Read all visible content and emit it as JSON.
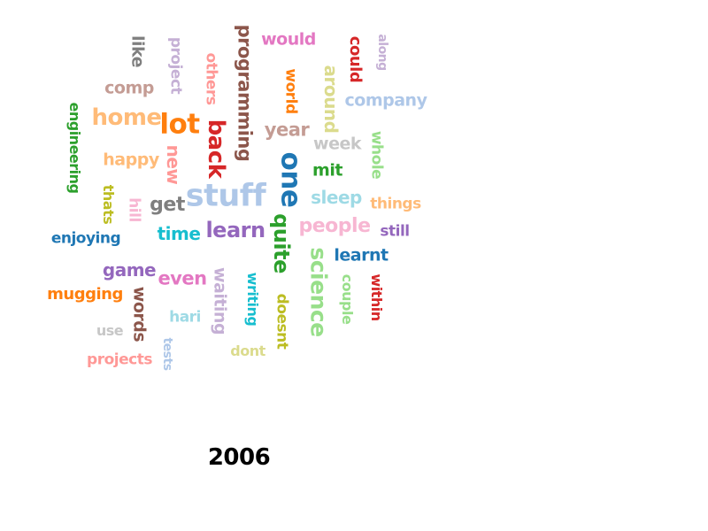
{
  "title": "2006",
  "words": [
    {
      "text": "like",
      "color": "#7f7f7f",
      "vertical": true
    },
    {
      "text": "project",
      "color": "#c5b0d5",
      "vertical": true
    },
    {
      "text": "others",
      "color": "#ff9896",
      "vertical": true
    },
    {
      "text": "programming",
      "color": "#8c564b",
      "vertical": true
    },
    {
      "text": "would",
      "color": "#e377c2",
      "vertical": false
    },
    {
      "text": "could",
      "color": "#d62728",
      "vertical": true
    },
    {
      "text": "along",
      "color": "#c5b0d5",
      "vertical": true
    },
    {
      "text": "comp",
      "color": "#c49c94",
      "vertical": false
    },
    {
      "text": "world",
      "color": "#ff7f0e",
      "vertical": true
    },
    {
      "text": "around",
      "color": "#dbdb8d",
      "vertical": true
    },
    {
      "text": "company",
      "color": "#aec7e8",
      "vertical": false
    },
    {
      "text": "home",
      "color": "#ffbb78",
      "vertical": false
    },
    {
      "text": "lot",
      "color": "#ff7f0e",
      "vertical": false
    },
    {
      "text": "engineering",
      "color": "#2ca02c",
      "vertical": true
    },
    {
      "text": "back",
      "color": "#d62728",
      "vertical": true
    },
    {
      "text": "year",
      "color": "#c49c94",
      "vertical": false
    },
    {
      "text": "week",
      "color": "#c7c7c7",
      "vertical": false
    },
    {
      "text": "whole",
      "color": "#98df8a",
      "vertical": true
    },
    {
      "text": "happy",
      "color": "#ffbb78",
      "vertical": false
    },
    {
      "text": "new",
      "color": "#ff9896",
      "vertical": true
    },
    {
      "text": "mit",
      "color": "#2ca02c",
      "vertical": false
    },
    {
      "text": "one",
      "color": "#1f77b4",
      "vertical": true
    },
    {
      "text": "stuff",
      "color": "#aec7e8",
      "vertical": false
    },
    {
      "text": "sleep",
      "color": "#9edae5",
      "vertical": false
    },
    {
      "text": "things",
      "color": "#ffbb78",
      "vertical": false
    },
    {
      "text": "thats",
      "color": "#bcbd22",
      "vertical": true
    },
    {
      "text": "hill",
      "color": "#f7b6d2",
      "vertical": true
    },
    {
      "text": "get",
      "color": "#7f7f7f",
      "vertical": false
    },
    {
      "text": "learn",
      "color": "#9467bd",
      "vertical": false
    },
    {
      "text": "quite",
      "color": "#2ca02c",
      "vertical": true
    },
    {
      "text": "people",
      "color": "#f7b6d2",
      "vertical": false
    },
    {
      "text": "still",
      "color": "#9467bd",
      "vertical": false
    },
    {
      "text": "enjoying",
      "color": "#1f77b4",
      "vertical": false
    },
    {
      "text": "time",
      "color": "#17becf",
      "vertical": false
    },
    {
      "text": "learnt",
      "color": "#1f77b4",
      "vertical": false
    },
    {
      "text": "science",
      "color": "#98df8a",
      "vertical": true
    },
    {
      "text": "game",
      "color": "#9467bd",
      "vertical": false
    },
    {
      "text": "couple",
      "color": "#98df8a",
      "vertical": true
    },
    {
      "text": "within",
      "color": "#d62728",
      "vertical": true
    },
    {
      "text": "even",
      "color": "#e377c2",
      "vertical": false
    },
    {
      "text": "waiting",
      "color": "#c5b0d5",
      "vertical": true
    },
    {
      "text": "writing",
      "color": "#17becf",
      "vertical": true
    },
    {
      "text": "mugging",
      "color": "#ff7f0e",
      "vertical": false
    },
    {
      "text": "words",
      "color": "#8c564b",
      "vertical": true
    },
    {
      "text": "doesnt",
      "color": "#bcbd22",
      "vertical": true
    },
    {
      "text": "hari",
      "color": "#9edae5",
      "vertical": false
    },
    {
      "text": "use",
      "color": "#c7c7c7",
      "vertical": false
    },
    {
      "text": "tests",
      "color": "#aec7e8",
      "vertical": true
    },
    {
      "text": "projects",
      "color": "#ff9896",
      "vertical": false
    },
    {
      "text": "dont",
      "color": "#dbdb8d",
      "vertical": false
    }
  ]
}
